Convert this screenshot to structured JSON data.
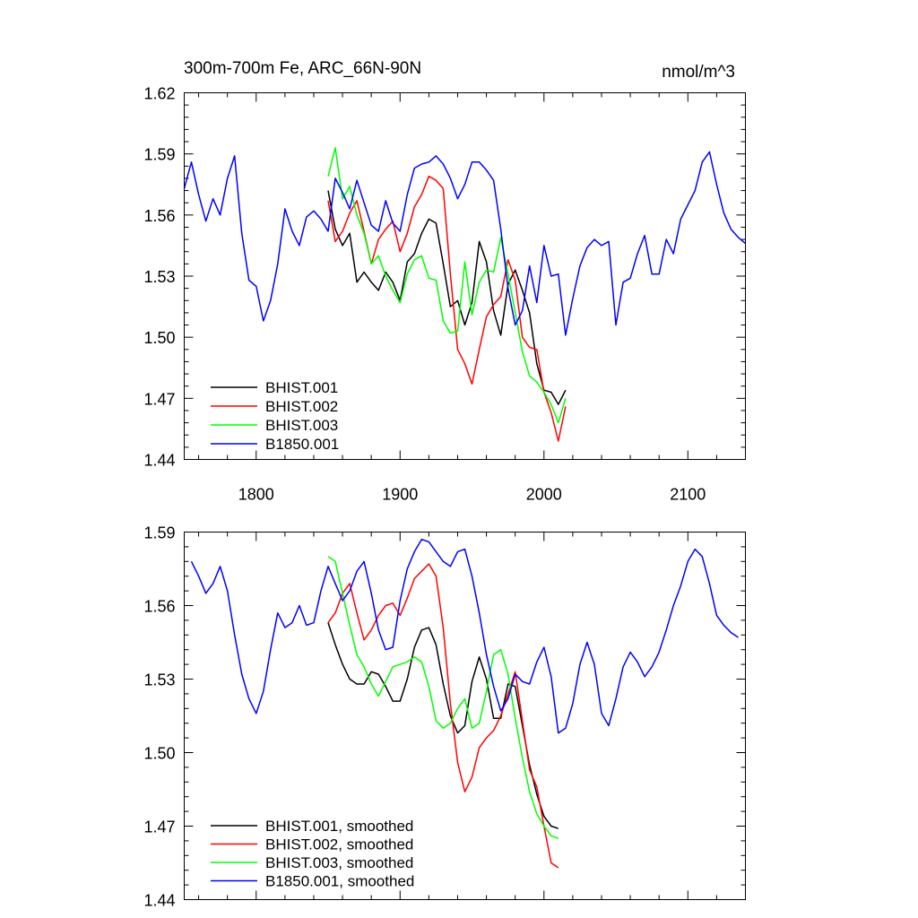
{
  "colors": {
    "BHIST.001": "#000000",
    "BHIST.002": "#ff0000",
    "BHIST.003": "#00ff00",
    "B1850.001": "#0000ff"
  },
  "chart_data": [
    {
      "type": "line",
      "title": "300m-700m Fe, ARC_66N-90N",
      "units": "nmol/m^3",
      "xlim": [
        1750,
        2140
      ],
      "ylim": [
        1.44,
        1.62
      ],
      "xticks": [
        1800,
        1900,
        2000,
        2100
      ],
      "xtick_labels": [
        "1800",
        "1900",
        "2000",
        "2100"
      ],
      "yticks": [
        1.44,
        1.47,
        1.5,
        1.53,
        1.56,
        1.59,
        1.62
      ],
      "ytick_labels": [
        "1.44",
        "1.47",
        "1.50",
        "1.53",
        "1.56",
        "1.59",
        "1.62"
      ],
      "legend_position": "bottom-left",
      "series": [
        {
          "name": "BHIST.001",
          "color": "#000000",
          "x": [
            1850,
            1855,
            1860,
            1865,
            1870,
            1875,
            1880,
            1885,
            1890,
            1895,
            1900,
            1905,
            1910,
            1915,
            1920,
            1925,
            1930,
            1935,
            1940,
            1945,
            1950,
            1955,
            1960,
            1965,
            1970,
            1975,
            1980,
            1985,
            1990,
            1995,
            2000,
            2005,
            2010,
            2015
          ],
          "y": [
            1.572,
            1.553,
            1.545,
            1.551,
            1.527,
            1.532,
            1.527,
            1.523,
            1.532,
            1.527,
            1.518,
            1.537,
            1.541,
            1.551,
            1.558,
            1.556,
            1.536,
            1.515,
            1.518,
            1.506,
            1.517,
            1.547,
            1.537,
            1.513,
            1.501,
            1.526,
            1.533,
            1.523,
            1.512,
            1.487,
            1.474,
            1.473,
            1.467,
            1.474
          ]
        },
        {
          "name": "BHIST.002",
          "color": "#ff0000",
          "x": [
            1850,
            1855,
            1860,
            1865,
            1870,
            1875,
            1880,
            1885,
            1890,
            1895,
            1900,
            1905,
            1910,
            1915,
            1920,
            1925,
            1930,
            1935,
            1940,
            1945,
            1950,
            1955,
            1960,
            1965,
            1970,
            1975,
            1980,
            1985,
            1990,
            1995,
            2000,
            2005,
            2010,
            2015
          ],
          "y": [
            1.567,
            1.547,
            1.552,
            1.561,
            1.567,
            1.552,
            1.536,
            1.548,
            1.553,
            1.557,
            1.542,
            1.551,
            1.564,
            1.57,
            1.579,
            1.577,
            1.573,
            1.531,
            1.494,
            1.487,
            1.477,
            1.494,
            1.51,
            1.516,
            1.52,
            1.538,
            1.528,
            1.5,
            1.495,
            1.494,
            1.473,
            1.463,
            1.449,
            1.466
          ]
        },
        {
          "name": "BHIST.003",
          "color": "#00ff00",
          "x": [
            1850,
            1855,
            1860,
            1865,
            1870,
            1875,
            1880,
            1885,
            1890,
            1895,
            1900,
            1905,
            1910,
            1915,
            1920,
            1925,
            1930,
            1935,
            1940,
            1945,
            1950,
            1955,
            1960,
            1965,
            1970,
            1975,
            1980,
            1985,
            1990,
            1995,
            2000,
            2005,
            2010,
            2015
          ],
          "y": [
            1.579,
            1.593,
            1.568,
            1.574,
            1.56,
            1.551,
            1.536,
            1.54,
            1.53,
            1.523,
            1.517,
            1.531,
            1.538,
            1.54,
            1.529,
            1.528,
            1.508,
            1.502,
            1.503,
            1.537,
            1.511,
            1.527,
            1.533,
            1.532,
            1.549,
            1.531,
            1.512,
            1.493,
            1.481,
            1.478,
            1.473,
            1.467,
            1.458,
            1.47
          ]
        },
        {
          "name": "B1850.001",
          "color": "#0000ff",
          "x": [
            1750,
            1755,
            1760,
            1765,
            1770,
            1775,
            1780,
            1785,
            1790,
            1795,
            1800,
            1805,
            1810,
            1815,
            1820,
            1825,
            1830,
            1835,
            1840,
            1845,
            1850,
            1855,
            1860,
            1865,
            1870,
            1875,
            1880,
            1885,
            1890,
            1895,
            1900,
            1905,
            1910,
            1915,
            1920,
            1925,
            1930,
            1935,
            1940,
            1945,
            1950,
            1955,
            1960,
            1965,
            1970,
            1975,
            1980,
            1985,
            1990,
            1995,
            2000,
            2005,
            2010,
            2015,
            2020,
            2025,
            2030,
            2035,
            2040,
            2045,
            2050,
            2055,
            2060,
            2065,
            2070,
            2075,
            2080,
            2085,
            2090,
            2095,
            2100,
            2105,
            2110,
            2115,
            2120,
            2125,
            2130,
            2135,
            2140
          ],
          "y": [
            1.573,
            1.586,
            1.57,
            1.557,
            1.568,
            1.56,
            1.578,
            1.589,
            1.551,
            1.528,
            1.525,
            1.508,
            1.518,
            1.536,
            1.563,
            1.552,
            1.545,
            1.559,
            1.562,
            1.558,
            1.552,
            1.578,
            1.571,
            1.563,
            1.577,
            1.566,
            1.555,
            1.552,
            1.567,
            1.556,
            1.552,
            1.57,
            1.583,
            1.585,
            1.586,
            1.589,
            1.585,
            1.578,
            1.568,
            1.575,
            1.586,
            1.586,
            1.582,
            1.577,
            1.553,
            1.524,
            1.506,
            1.513,
            1.535,
            1.517,
            1.545,
            1.53,
            1.531,
            1.501,
            1.519,
            1.535,
            1.544,
            1.548,
            1.545,
            1.547,
            1.506,
            1.527,
            1.529,
            1.541,
            1.55,
            1.531,
            1.531,
            1.548,
            1.541,
            1.558,
            1.565,
            1.572,
            1.586,
            1.591,
            1.575,
            1.561,
            1.553,
            1.549,
            1.546
          ]
        }
      ]
    },
    {
      "type": "line",
      "title": "",
      "xlim": [
        1750,
        2140
      ],
      "ylim": [
        1.44,
        1.59
      ],
      "xticks": [
        1800,
        1900,
        2000,
        2100
      ],
      "yticks": [
        1.44,
        1.47,
        1.5,
        1.53,
        1.56,
        1.59
      ],
      "ytick_labels": [
        "1.44",
        "1.47",
        "1.50",
        "1.53",
        "1.56",
        "1.59"
      ],
      "legend_position": "bottom-left",
      "series": [
        {
          "name": "BHIST.001, smoothed",
          "color": "#000000",
          "x": [
            1850,
            1855,
            1860,
            1865,
            1870,
            1875,
            1880,
            1885,
            1890,
            1895,
            1900,
            1905,
            1910,
            1915,
            1920,
            1925,
            1930,
            1935,
            1940,
            1945,
            1950,
            1955,
            1960,
            1965,
            1970,
            1975,
            1980,
            1985,
            1990,
            1995,
            2000,
            2005,
            2010
          ],
          "y": [
            1.553,
            1.544,
            1.536,
            1.53,
            1.528,
            1.528,
            1.533,
            1.532,
            1.527,
            1.521,
            1.521,
            1.53,
            1.543,
            1.55,
            1.551,
            1.544,
            1.528,
            1.515,
            1.508,
            1.511,
            1.529,
            1.539,
            1.53,
            1.514,
            1.514,
            1.528,
            1.527,
            1.511,
            1.495,
            1.483,
            1.474,
            1.47,
            1.469
          ]
        },
        {
          "name": "BHIST.002, smoothed",
          "color": "#ff0000",
          "x": [
            1850,
            1855,
            1860,
            1865,
            1870,
            1875,
            1880,
            1885,
            1890,
            1895,
            1900,
            1905,
            1910,
            1915,
            1920,
            1925,
            1930,
            1935,
            1940,
            1945,
            1950,
            1955,
            1960,
            1965,
            1970,
            1975,
            1980,
            1985,
            1990,
            1995,
            2000,
            2005,
            2010
          ],
          "y": [
            1.553,
            1.557,
            1.565,
            1.569,
            1.557,
            1.546,
            1.55,
            1.556,
            1.56,
            1.561,
            1.556,
            1.563,
            1.571,
            1.574,
            1.577,
            1.572,
            1.551,
            1.52,
            1.496,
            1.484,
            1.49,
            1.502,
            1.506,
            1.509,
            1.515,
            1.524,
            1.533,
            1.513,
            1.493,
            1.486,
            1.47,
            1.455,
            1.453
          ]
        },
        {
          "name": "BHIST.003, smoothed",
          "color": "#00ff00",
          "x": [
            1850,
            1855,
            1860,
            1865,
            1870,
            1875,
            1880,
            1885,
            1890,
            1895,
            1900,
            1905,
            1910,
            1915,
            1920,
            1925,
            1930,
            1935,
            1940,
            1945,
            1950,
            1955,
            1960,
            1965,
            1970,
            1975,
            1980,
            1985,
            1990,
            1995,
            2000,
            2005,
            2010
          ],
          "y": [
            1.58,
            1.578,
            1.565,
            1.552,
            1.54,
            1.535,
            1.528,
            1.523,
            1.529,
            1.535,
            1.536,
            1.537,
            1.539,
            1.537,
            1.527,
            1.513,
            1.51,
            1.512,
            1.518,
            1.522,
            1.51,
            1.512,
            1.525,
            1.54,
            1.542,
            1.532,
            1.514,
            1.498,
            1.484,
            1.475,
            1.47,
            1.466,
            1.465
          ]
        },
        {
          "name": "B1850.001, smoothed",
          "color": "#0000ff",
          "x": [
            1755,
            1760,
            1765,
            1770,
            1775,
            1780,
            1785,
            1790,
            1795,
            1800,
            1805,
            1810,
            1815,
            1820,
            1825,
            1830,
            1835,
            1840,
            1845,
            1850,
            1855,
            1860,
            1865,
            1870,
            1875,
            1880,
            1885,
            1890,
            1895,
            1900,
            1905,
            1910,
            1915,
            1920,
            1925,
            1930,
            1935,
            1940,
            1945,
            1950,
            1955,
            1960,
            1965,
            1970,
            1975,
            1980,
            1985,
            1990,
            1995,
            2000,
            2005,
            2010,
            2015,
            2020,
            2025,
            2030,
            2035,
            2040,
            2045,
            2050,
            2055,
            2060,
            2065,
            2070,
            2075,
            2080,
            2085,
            2090,
            2095,
            2100,
            2105,
            2110,
            2115,
            2120,
            2125,
            2130,
            2135
          ],
          "y": [
            1.578,
            1.572,
            1.565,
            1.569,
            1.576,
            1.566,
            1.548,
            1.532,
            1.522,
            1.516,
            1.525,
            1.542,
            1.557,
            1.551,
            1.553,
            1.56,
            1.552,
            1.553,
            1.566,
            1.576,
            1.569,
            1.562,
            1.566,
            1.574,
            1.578,
            1.565,
            1.55,
            1.542,
            1.543,
            1.562,
            1.575,
            1.582,
            1.587,
            1.586,
            1.582,
            1.578,
            1.576,
            1.582,
            1.583,
            1.572,
            1.557,
            1.54,
            1.527,
            1.517,
            1.522,
            1.532,
            1.529,
            1.528,
            1.537,
            1.543,
            1.531,
            1.508,
            1.51,
            1.52,
            1.536,
            1.545,
            1.536,
            1.516,
            1.511,
            1.522,
            1.535,
            1.541,
            1.537,
            1.531,
            1.535,
            1.541,
            1.55,
            1.56,
            1.568,
            1.578,
            1.583,
            1.58,
            1.569,
            1.556,
            1.552,
            1.549,
            1.547
          ]
        }
      ]
    }
  ]
}
